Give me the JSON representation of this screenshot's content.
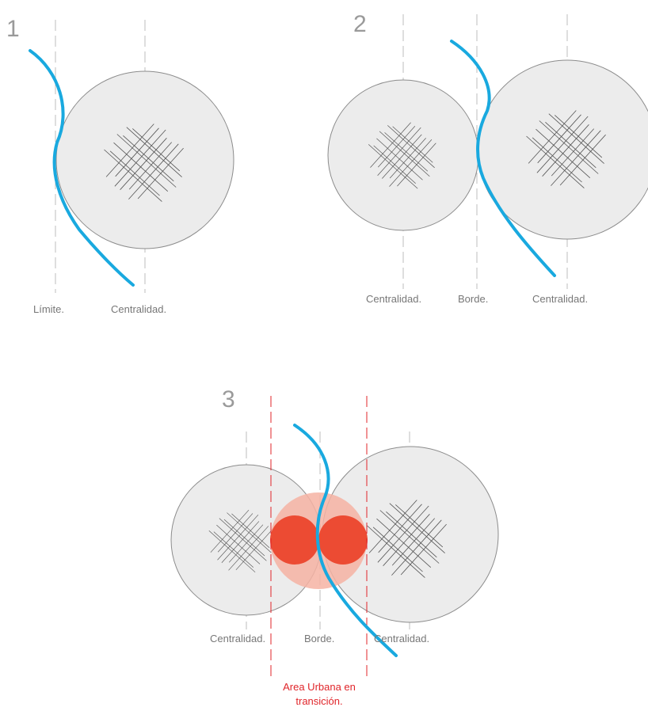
{
  "panels": [
    {
      "number": "1",
      "labels": [
        "Límite.",
        "Centralidad."
      ]
    },
    {
      "number": "2",
      "labels": [
        "Centralidad.",
        "Borde.",
        "Centralidad."
      ]
    },
    {
      "number": "3",
      "labels": [
        "Centralidad.",
        "Borde.",
        "Centralidad."
      ],
      "transition_label": [
        "Area Urbana en",
        "transición."
      ]
    }
  ],
  "colors": {
    "edge": "#19a9df",
    "circle_fill": "#ececec",
    "transition_zone": "#f6b3a3",
    "transition_core": "#ec4b33",
    "transition_text": "#e0252a"
  }
}
